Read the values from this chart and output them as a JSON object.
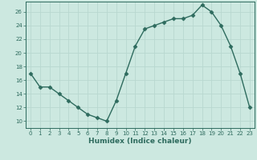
{
  "x": [
    0,
    1,
    2,
    3,
    4,
    5,
    6,
    7,
    8,
    9,
    10,
    11,
    12,
    13,
    14,
    15,
    16,
    17,
    18,
    19,
    20,
    21,
    22,
    23
  ],
  "y": [
    17,
    15,
    15,
    14,
    13,
    12,
    11,
    10.5,
    10,
    13,
    17,
    21,
    23.5,
    24,
    24.5,
    25,
    25,
    25.5,
    27,
    26,
    24,
    21,
    17,
    12
  ],
  "line_color": "#2e6b5e",
  "marker": "D",
  "marker_size": 2.5,
  "bg_color": "#cce8e0",
  "grid_color": "#b8d8d0",
  "xlabel": "Humidex (Indice chaleur)",
  "xlim": [
    -0.5,
    23.5
  ],
  "ylim": [
    9.0,
    27.5
  ],
  "yticks": [
    10,
    12,
    14,
    16,
    18,
    20,
    22,
    24,
    26
  ],
  "xticks": [
    0,
    1,
    2,
    3,
    4,
    5,
    6,
    7,
    8,
    9,
    10,
    11,
    12,
    13,
    14,
    15,
    16,
    17,
    18,
    19,
    20,
    21,
    22,
    23
  ],
  "tick_fontsize": 5.0,
  "xlabel_fontsize": 6.5
}
